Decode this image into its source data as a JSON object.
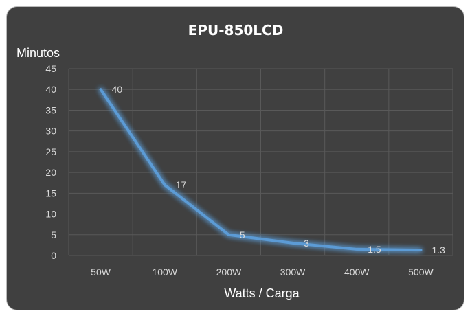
{
  "chart_data": {
    "type": "line",
    "title": "EPU-850LCD",
    "ylabel": "Minutos",
    "xlabel": "Watts / Carga",
    "categories": [
      "50W",
      "100W",
      "200W",
      "300W",
      "400W",
      "500W"
    ],
    "series": [
      {
        "values": [
          40,
          17,
          5,
          3,
          1.5,
          1.3
        ],
        "labels": [
          "40",
          "17",
          "5",
          "3",
          "1.5",
          "1.3"
        ]
      }
    ],
    "ylim": [
      0,
      45
    ],
    "yticks": [
      "0",
      "5",
      "10",
      "15",
      "20",
      "25",
      "30",
      "35",
      "40",
      "45"
    ],
    "grid": true,
    "legend": "none",
    "line_color": "#5b9bd5",
    "background_color": "#404040"
  }
}
